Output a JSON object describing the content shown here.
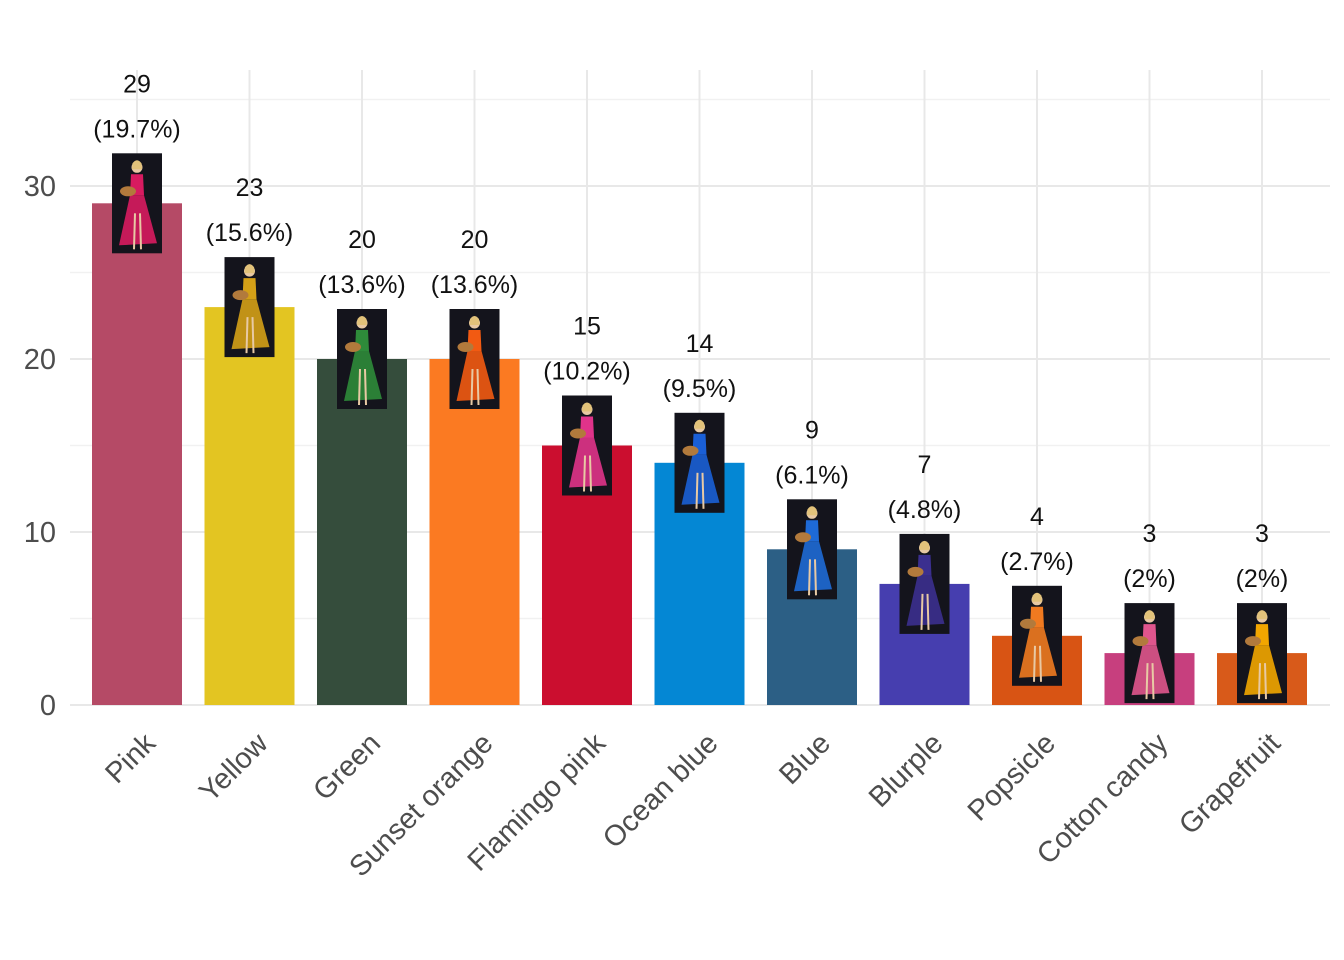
{
  "chart_data": {
    "type": "bar",
    "title": "",
    "xlabel": "",
    "ylabel": "",
    "categories": [
      "Pink",
      "Yellow",
      "Green",
      "Sunset orange",
      "Flamingo pink",
      "Ocean blue",
      "Blue",
      "Blurple",
      "Popsicle",
      "Cotton candy",
      "Grapefruit"
    ],
    "values": [
      29,
      23,
      20,
      20,
      15,
      14,
      9,
      7,
      4,
      3,
      3
    ],
    "percent_labels": [
      "(19.7%)",
      "(15.6%)",
      "(13.6%)",
      "(13.6%)",
      "(10.2%)",
      "(9.5%)",
      "(6.1%)",
      "(4.8%)",
      "(2.7%)",
      "(2%)",
      "(2%)"
    ],
    "colors": [
      "#b54a66",
      "#e3c522",
      "#354d3c",
      "#fb7a22",
      "#cb0e2f",
      "#0487d4",
      "#2c5f85",
      "#463eaf",
      "#d85414",
      "#c73f7e",
      "#d85a1a"
    ],
    "dress_colors": [
      "#d81b60",
      "#d4a017",
      "#2e8b3a",
      "#f25a12",
      "#e0338a",
      "#1a5fd6",
      "#1e6ad6",
      "#3b2f8f",
      "#f07a20",
      "#e0558d",
      "#f2a600"
    ],
    "ylim": [
      0,
      35
    ],
    "yticks": [
      0,
      10,
      20,
      30
    ],
    "grid": true,
    "legend": "none"
  }
}
